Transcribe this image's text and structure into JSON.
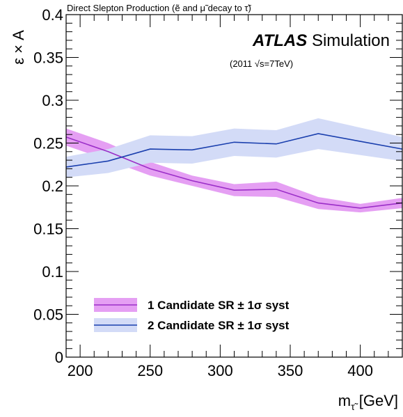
{
  "chart_data": {
    "type": "line",
    "title": "Direct Slepton Production (ẽ and μ̃ decay to τ̃)",
    "experiment_label": "ATLAS",
    "experiment_suffix": "Simulation",
    "energy_label": "(2011 √s=7TeV)",
    "xlabel": "m",
    "xlabel_subscript": "τ̃",
    "xlabel_unit": "[GeV]",
    "ylabel": "ε × A",
    "xlim": [
      190,
      430
    ],
    "ylim": [
      0,
      0.4
    ],
    "x_ticks": [
      200,
      250,
      300,
      350,
      400
    ],
    "x_tick_labels": [
      "200",
      "250",
      "300",
      "350",
      "400"
    ],
    "y_ticks": [
      0,
      0.05,
      0.1,
      0.15,
      0.2,
      0.25,
      0.3,
      0.35,
      0.4
    ],
    "y_tick_labels": [
      "0",
      "0.05",
      "0.1",
      "0.15",
      "0.2",
      "0.25",
      "0.3",
      "0.35",
      "0.4"
    ],
    "legend_position": "bottom-left",
    "grid": false,
    "series": [
      {
        "name": "1 Candidate SR ± 1σ syst",
        "color": "#9b2ec8",
        "band_color": "#e59ff3",
        "x": [
          190,
          220,
          250,
          280,
          310,
          340,
          370,
          400,
          430
        ],
        "y": [
          0.257,
          0.24,
          0.22,
          0.206,
          0.195,
          0.196,
          0.18,
          0.174,
          0.18
        ],
        "band": [
          0.01,
          0.01,
          0.008,
          0.006,
          0.007,
          0.009,
          0.007,
          0.005,
          0.006
        ]
      },
      {
        "name": "2 Candidate SR ± 1σ syst",
        "color": "#1a3fae",
        "band_color": "#d3dbf7",
        "x": [
          190,
          220,
          250,
          280,
          310,
          340,
          370,
          400,
          430
        ],
        "y": [
          0.222,
          0.229,
          0.243,
          0.242,
          0.251,
          0.249,
          0.261,
          0.252,
          0.243
        ],
        "band": [
          0.012,
          0.014,
          0.016,
          0.016,
          0.016,
          0.016,
          0.018,
          0.016,
          0.014
        ]
      }
    ]
  }
}
